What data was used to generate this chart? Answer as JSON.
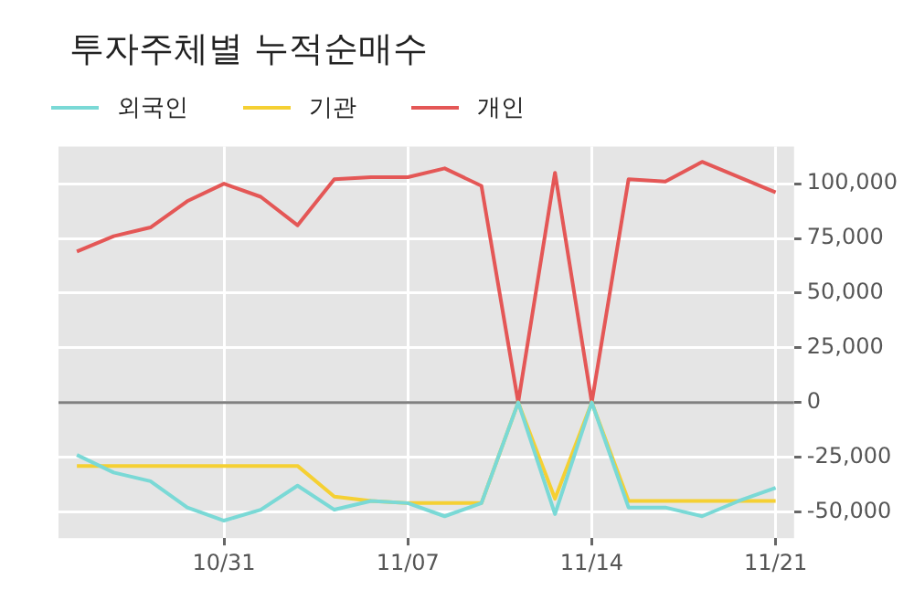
{
  "chart_data": {
    "type": "line",
    "title": "투자주체별 누적순매수",
    "categories": [
      null,
      null,
      null,
      null,
      "10/31",
      null,
      null,
      null,
      null,
      "11/07",
      null,
      null,
      null,
      null,
      "11/14",
      null,
      null,
      null,
      null,
      "11/21"
    ],
    "series": [
      {
        "name": "외국인",
        "color": "#7ad9d6",
        "values": [
          -24000,
          -32000,
          -36000,
          -48000,
          -54000,
          -49000,
          -38000,
          -49000,
          -45000,
          -46000,
          -52000,
          -46000,
          0,
          -51000,
          0,
          -48000,
          -48000,
          -52000,
          -45000,
          -39000
        ]
      },
      {
        "name": "기관",
        "color": "#f5d033",
        "values": [
          -29000,
          -29000,
          -29000,
          -29000,
          -29000,
          -29000,
          -29000,
          -43000,
          -45000,
          -46000,
          -46000,
          -46000,
          0,
          -44000,
          0,
          -45000,
          -45000,
          -45000,
          -45000,
          -45000
        ]
      },
      {
        "name": "개인",
        "color": "#e45756",
        "values": [
          69000,
          76000,
          80000,
          92000,
          100000,
          94000,
          81000,
          102000,
          103000,
          103000,
          107000,
          99000,
          0,
          105000,
          0,
          102000,
          101000,
          110000,
          103000,
          96000
        ]
      }
    ],
    "ylim": [
      -62000,
      117000
    ],
    "yticks": [
      {
        "value": -50000,
        "label": "-50,000"
      },
      {
        "value": -25000,
        "label": "-25,000"
      },
      0,
      {
        "value": 25000,
        "label": "25,000"
      },
      {
        "value": 50000,
        "label": "50,000"
      },
      {
        "value": 75000,
        "label": "75,000"
      },
      {
        "value": 100000,
        "label": "100,000"
      }
    ],
    "ref_lines": [
      {
        "axis": "y",
        "value": 0,
        "color": "#808080"
      }
    ],
    "grid": true,
    "legend": "top left",
    "marker": "none",
    "line_style": "solid"
  }
}
